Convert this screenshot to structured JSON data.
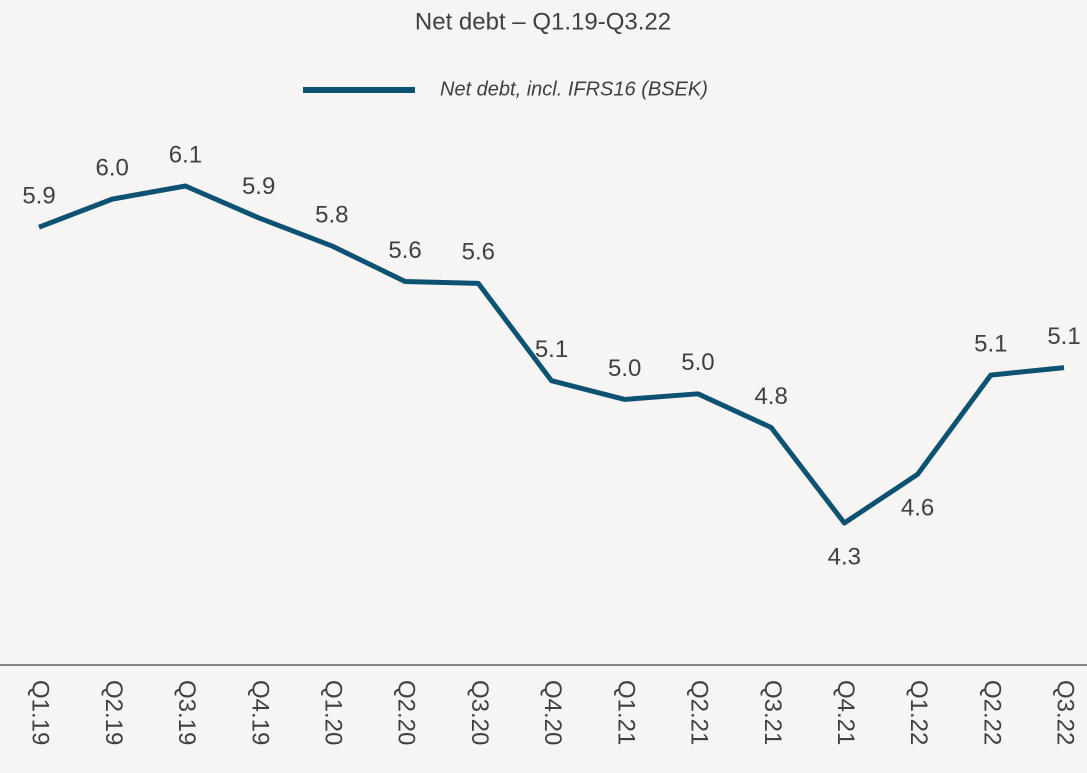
{
  "chart_data": {
    "type": "line",
    "title": "Net debt – Q1.19-Q3.22",
    "categories": [
      "Q1.19",
      "Q2.19",
      "Q3.19",
      "Q4.19",
      "Q1.20",
      "Q2.20",
      "Q3.20",
      "Q4.20",
      "Q1.21",
      "Q2.21",
      "Q3.21",
      "Q4.21",
      "Q1.22",
      "Q2.22",
      "Q3.22"
    ],
    "series": [
      {
        "name": "Net debt, incl. IFRS16 (BSEK)",
        "color": "#0e5273",
        "values": [
          5.88,
          6.03,
          6.1,
          5.93,
          5.78,
          5.59,
          5.58,
          5.06,
          4.96,
          4.99,
          4.81,
          4.3,
          4.56,
          5.09,
          5.13
        ],
        "value_labels": [
          "5.9",
          "6.0",
          "6.1",
          "5.9",
          "5.8",
          "5.6",
          "5.6",
          "5.1",
          "5.0",
          "5.0",
          "4.8",
          "4.3",
          "4.6",
          "5.1",
          "5.1"
        ]
      }
    ]
  }
}
